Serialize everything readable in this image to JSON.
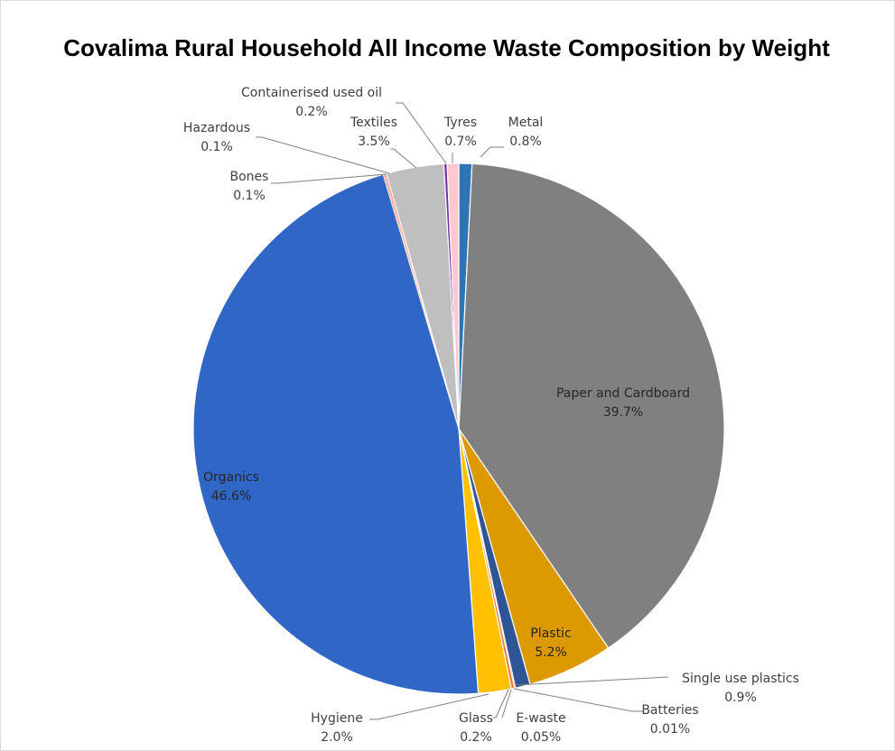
{
  "chart_data": {
    "type": "pie",
    "title": "Covalima Rural Household All Income Waste Composition by Weight",
    "slices": [
      {
        "name": "Metal",
        "label": "0.8%",
        "value": 0.8,
        "color": "#2e75b6"
      },
      {
        "name": "Paper and Cardboard",
        "label": "39.7%",
        "value": 39.7,
        "color": "#808080"
      },
      {
        "name": "Plastic",
        "label": "5.2%",
        "value": 5.2,
        "color": "#dc9a00"
      },
      {
        "name": "Single use plastics",
        "label": "0.9%",
        "value": 0.9,
        "color": "#2f5597"
      },
      {
        "name": "Batteries",
        "label": "0.01%",
        "value": 0.01,
        "color": "#a5a5a5"
      },
      {
        "name": "E-waste",
        "label": "0.05%",
        "value": 0.05,
        "color": "#843c0c"
      },
      {
        "name": "Glass",
        "label": "0.2%",
        "value": 0.2,
        "color": "#ed7d31"
      },
      {
        "name": "Hygiene",
        "label": "2.0%",
        "value": 2.0,
        "color": "#ffc000"
      },
      {
        "name": "Organics",
        "label": "46.6%",
        "value": 46.6,
        "color": "#3066c6"
      },
      {
        "name": "Bones",
        "label": "0.1%",
        "value": 0.1,
        "color": "#f4b183"
      },
      {
        "name": "Hazardous",
        "label": "0.1%",
        "value": 0.1,
        "color": "#ff7c80"
      },
      {
        "name": "Textiles",
        "label": "3.5%",
        "value": 3.5,
        "color": "#bfbfbf"
      },
      {
        "name": "Containerised used oil",
        "label": "0.2%",
        "value": 0.2,
        "color": "#7030a0"
      },
      {
        "name": "Tyres",
        "label": "0.7%",
        "value": 0.7,
        "color": "#ffc7ce"
      }
    ],
    "legend": "none",
    "data_labels": "category name and percentage"
  }
}
